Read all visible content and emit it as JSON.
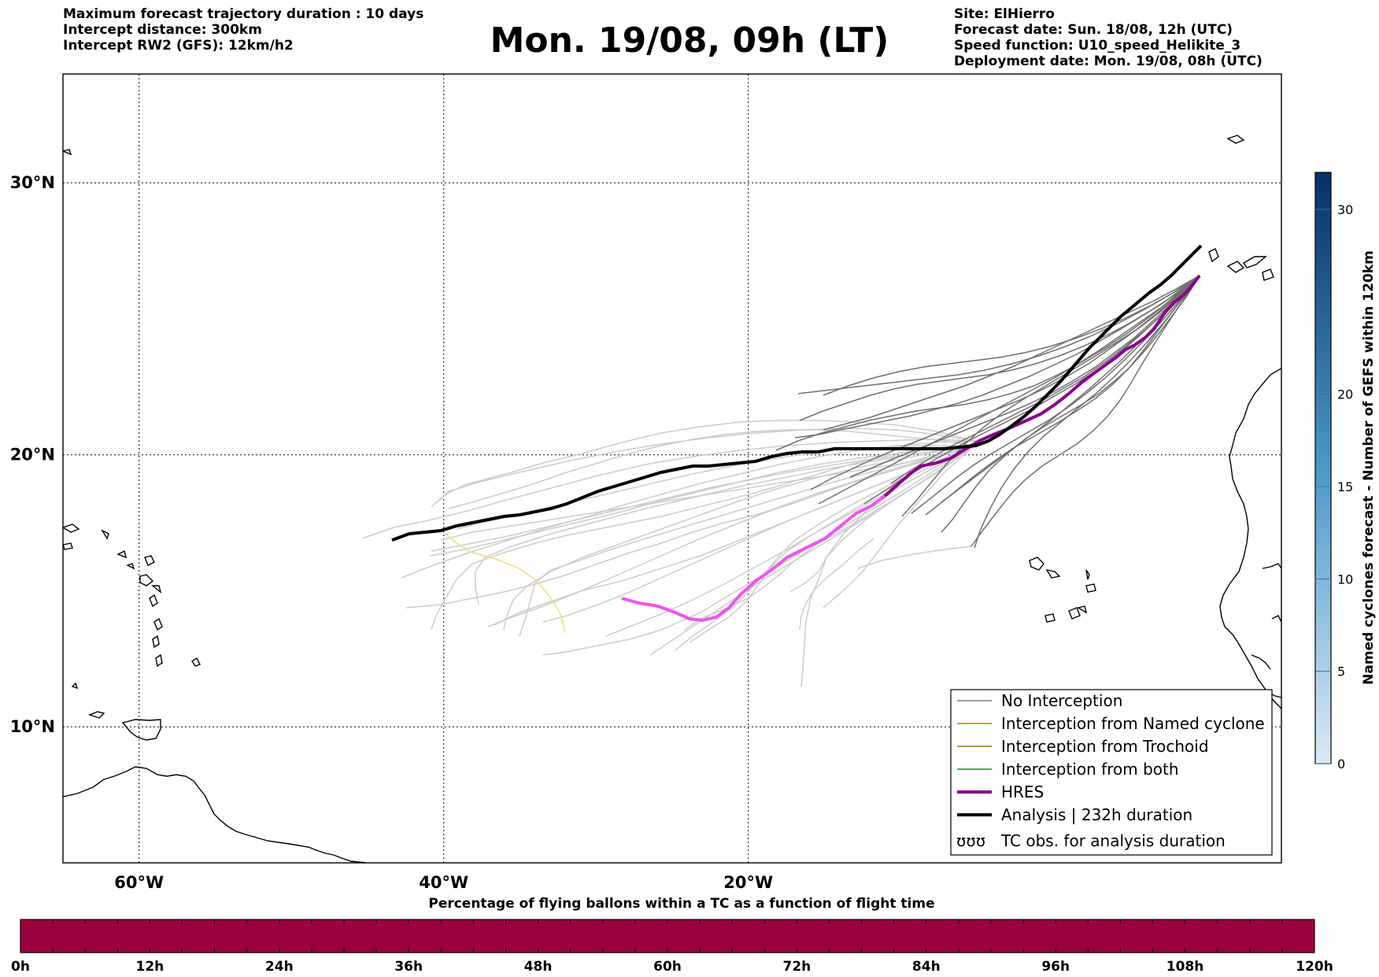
{
  "header": {
    "left": [
      "Maximum forecast trajectory duration : 10 days",
      "Intercept distance: 300km",
      "Intercept RW2 (GFS):  12km/h2"
    ],
    "title": "Mon. 19/08, 09h (LT)",
    "right": [
      "Site: ElHierro",
      "Forecast date: Sun. 18/08, 12h (UTC)",
      "Speed function: U10_speed_Helikite_3",
      "Deployment date: Mon. 19/08, 08h (UTC)"
    ]
  },
  "map": {
    "lon_range": [
      -65,
      15
    ],
    "lat_range": [
      5,
      34
    ],
    "lat_labels": [
      {
        "lat": 30,
        "label": "30°N"
      },
      {
        "lat": 20,
        "label": "20°N"
      },
      {
        "lat": 10,
        "label": "10°N"
      }
    ],
    "lon_labels": [
      {
        "lon": -60,
        "label": "60°W"
      },
      {
        "lon": -40,
        "label": "40°W"
      },
      {
        "lon": -20,
        "label": "20°W"
      }
    ],
    "colors": {
      "no_interception": "#808080",
      "named_cyclone": "#ff6020",
      "trochoid": "#808000",
      "both": "#228b22",
      "hres": "#8b008b",
      "hres_late": "#ee55ee",
      "analysis": "#000000",
      "light_traj": "#cccccc",
      "yellow_traj": "#e8e27a"
    }
  },
  "legend": {
    "items": [
      {
        "name": "legend-no-interception",
        "label": "No Interception",
        "color": "#808080",
        "width": 1.5
      },
      {
        "name": "legend-named-cyclone",
        "label": "Interception from Named cyclone",
        "color": "#ff6020",
        "width": 1.5
      },
      {
        "name": "legend-trochoid",
        "label": "Interception from Trochoid",
        "color": "#808000",
        "width": 1.5
      },
      {
        "name": "legend-both",
        "label": "Interception from both",
        "color": "#228b22",
        "width": 1.5
      },
      {
        "name": "legend-hres",
        "label": "HRES",
        "color": "#8b008b",
        "width": 4
      },
      {
        "name": "legend-analysis",
        "label": "Analysis | 232h duration",
        "color": "#000000",
        "width": 4
      }
    ],
    "tc_symbol": "ʊʊʊ",
    "tc_label": "TC obs. for analysis duration"
  },
  "colorbar": {
    "label": "Named cyclones forecast - Number of GEFS within 120km",
    "min": 0,
    "max": 32,
    "ticks": [
      0,
      5,
      10,
      15,
      20,
      30
    ],
    "color_low": "#dbe9f6",
    "color_high": "#08306b"
  },
  "bottom_bar": {
    "title": "Percentage of flying ballons within a TC as a function of flight time",
    "color": "#9b0040",
    "ticks": [
      "0h",
      "12h",
      "24h",
      "36h",
      "48h",
      "60h",
      "72h",
      "84h",
      "96h",
      "108h",
      "120h"
    ]
  }
}
